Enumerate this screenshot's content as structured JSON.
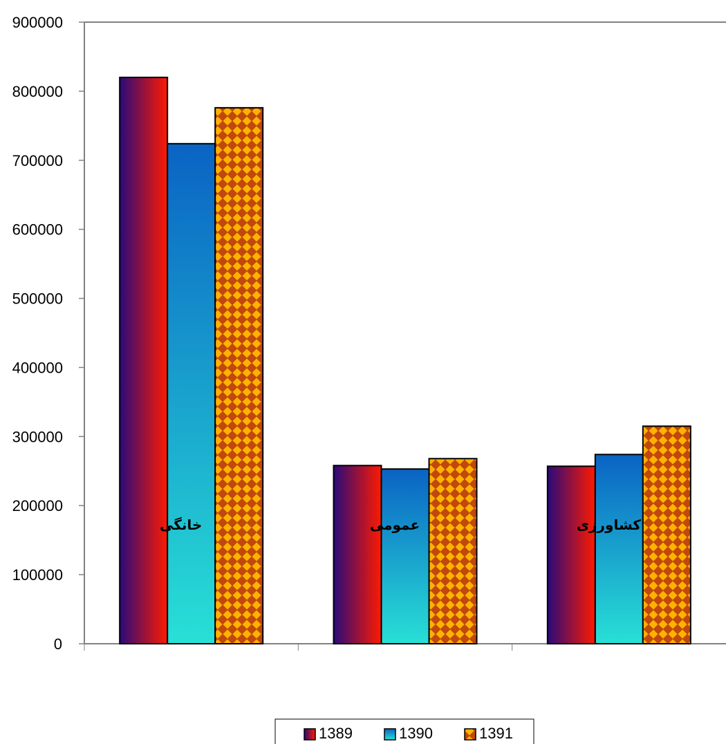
{
  "chart_data": {
    "type": "bar",
    "categories": [
      "خانگی",
      "عمومی",
      "کشاورزی"
    ],
    "series": [
      {
        "name": "1389",
        "values": [
          820000,
          258000,
          257000
        ]
      },
      {
        "name": "1390",
        "values": [
          724000,
          253000,
          274000
        ]
      },
      {
        "name": "1391",
        "values": [
          776000,
          268000,
          315000
        ]
      }
    ],
    "ylim": [
      0,
      900000
    ],
    "yticks": [
      "0",
      "100000",
      "200000",
      "300000",
      "400000",
      "500000",
      "600000",
      "700000",
      "800000",
      "900000"
    ],
    "grid": false,
    "legend_position": "bottom",
    "colors": {
      "1389_start": "#2a0a7a",
      "1389_end": "#ff1a00",
      "1390_top": "#0a63c4",
      "1390_bottom": "#28e0d6",
      "1391_base": "#c1480c",
      "1391_diamond": "#ffb300",
      "axis": "#808080",
      "bar_outline": "#000000"
    }
  }
}
